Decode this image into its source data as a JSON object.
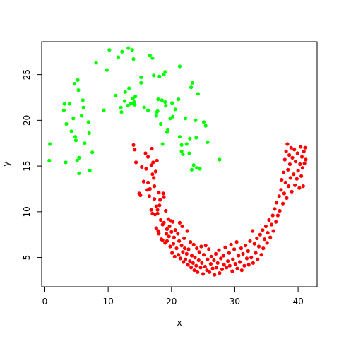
{
  "chart_data": {
    "type": "scatter",
    "xlabel": "x",
    "ylabel": "y",
    "xlim": [
      -0.5,
      43
    ],
    "ylim": [
      1.8,
      28.6
    ],
    "xticks": [
      0,
      10,
      20,
      30,
      40
    ],
    "yticks": [
      5,
      10,
      15,
      20,
      25
    ],
    "grid": false,
    "series": [
      {
        "color": "#00ff00",
        "points": [
          [
            0.8,
            17.4
          ],
          [
            0.7,
            15.6
          ],
          [
            3.0,
            21.1
          ],
          [
            3.1,
            21.8
          ],
          [
            3.4,
            19.6
          ],
          [
            3.3,
            15.4
          ],
          [
            3.9,
            21.8
          ],
          [
            4.2,
            18.8
          ],
          [
            4.5,
            20.2
          ],
          [
            4.7,
            24.0
          ],
          [
            4.8,
            18.2
          ],
          [
            4.9,
            17.8
          ],
          [
            5.2,
            24.4
          ],
          [
            5.3,
            23.3
          ],
          [
            5.1,
            15.6
          ],
          [
            5.4,
            15.9
          ],
          [
            5.4,
            14.2
          ],
          [
            5.8,
            20.5
          ],
          [
            6.0,
            22.2
          ],
          [
            6.1,
            21.4
          ],
          [
            6.3,
            17.5
          ],
          [
            6.9,
            19.8
          ],
          [
            7.0,
            18.6
          ],
          [
            7.1,
            14.5
          ],
          [
            7.5,
            16.5
          ],
          [
            8.1,
            26.3
          ],
          [
            10.2,
            27.7
          ],
          [
            9.8,
            25.5
          ],
          [
            9.3,
            21.1
          ],
          [
            11.2,
            22.7
          ],
          [
            11.6,
            26.9
          ],
          [
            12.2,
            27.5
          ],
          [
            12.0,
            21.4
          ],
          [
            12.1,
            20.9
          ],
          [
            12.7,
            23.1
          ],
          [
            12.6,
            22.1
          ],
          [
            13.1,
            21.6
          ],
          [
            13.2,
            27.9
          ],
          [
            13.3,
            23.5
          ],
          [
            13.5,
            21.8
          ],
          [
            13.8,
            27.7
          ],
          [
            13.9,
            22.4
          ],
          [
            14.0,
            26.7
          ],
          [
            14.1,
            22.0
          ],
          [
            14.2,
            21.7
          ],
          [
            14.3,
            22.6
          ],
          [
            14.0,
            21.9
          ],
          [
            15.2,
            24.7
          ],
          [
            15.2,
            24.1
          ],
          [
            15.7,
            21.4
          ],
          [
            16.3,
            21.1
          ],
          [
            16.6,
            27.1
          ],
          [
            17.0,
            26.8
          ],
          [
            17.2,
            24.9
          ],
          [
            17.6,
            20.5
          ],
          [
            17.7,
            20.9
          ],
          [
            17.8,
            21.0
          ],
          [
            17.9,
            22.3
          ],
          [
            18.1,
            24.8
          ],
          [
            18.3,
            19.6
          ],
          [
            18.5,
            22.2
          ],
          [
            18.6,
            17.4
          ],
          [
            18.8,
            25.0
          ],
          [
            19.0,
            25.3
          ],
          [
            19.0,
            22.0
          ],
          [
            19.1,
            21.6
          ],
          [
            19.3,
            18.7
          ],
          [
            19.4,
            19.0
          ],
          [
            19.8,
            20.2
          ],
          [
            20.1,
            21.9
          ],
          [
            20.2,
            20.4
          ],
          [
            20.6,
            21.2
          ],
          [
            21.1,
            22.3
          ],
          [
            21.3,
            25.9
          ],
          [
            21.3,
            18.2
          ],
          [
            21.6,
            17.3
          ],
          [
            21.6,
            16.6
          ],
          [
            21.8,
            16.3
          ],
          [
            22.2,
            20.2
          ],
          [
            22.4,
            17.4
          ],
          [
            22.8,
            16.4
          ],
          [
            22.9,
            18.0
          ],
          [
            23.1,
            23.6
          ],
          [
            23.3,
            24.1
          ],
          [
            23.2,
            14.6
          ],
          [
            23.5,
            15.1
          ],
          [
            23.8,
            20.0
          ],
          [
            23.9,
            18.1
          ],
          [
            24.0,
            14.8
          ],
          [
            24.2,
            22.9
          ],
          [
            24.5,
            14.7
          ],
          [
            25.1,
            19.8
          ],
          [
            25.4,
            19.4
          ],
          [
            25.7,
            17.6
          ],
          [
            27.6,
            15.7
          ]
        ]
      },
      {
        "color": "#ff0000",
        "points": [
          [
            14.0,
            17.3
          ],
          [
            14.2,
            16.8
          ],
          [
            14.4,
            15.4
          ],
          [
            14.9,
            12.0
          ],
          [
            15.1,
            11.8
          ],
          [
            15.3,
            14.9
          ],
          [
            15.6,
            13.3
          ],
          [
            15.9,
            16.4
          ],
          [
            16.0,
            14.7
          ],
          [
            16.2,
            12.4
          ],
          [
            16.3,
            13.2
          ],
          [
            16.3,
            16.0
          ],
          [
            16.5,
            11.7
          ],
          [
            16.6,
            12.5
          ],
          [
            16.8,
            15.1
          ],
          [
            16.8,
            10.2
          ],
          [
            16.9,
            16.9
          ],
          [
            17.0,
            9.8
          ],
          [
            17.0,
            14.1
          ],
          [
            17.1,
            15.4
          ],
          [
            17.2,
            13.7
          ],
          [
            17.3,
            11.4
          ],
          [
            17.3,
            12.8
          ],
          [
            17.4,
            9.7
          ],
          [
            17.5,
            14.4
          ],
          [
            17.6,
            10.6
          ],
          [
            17.6,
            8.2
          ],
          [
            17.7,
            15.6
          ],
          [
            17.8,
            10.2
          ],
          [
            17.8,
            9.8
          ],
          [
            17.9,
            7.9
          ],
          [
            18.0,
            12.1
          ],
          [
            18.0,
            7.6
          ],
          [
            18.1,
            10.7
          ],
          [
            18.2,
            11.3
          ],
          [
            18.3,
            9.1
          ],
          [
            18.4,
            7.0
          ],
          [
            18.6,
            8.6
          ],
          [
            18.6,
            6.9
          ],
          [
            18.7,
            12.0
          ],
          [
            18.8,
            11.6
          ],
          [
            18.8,
            8.8
          ],
          [
            19.0,
            6.6
          ],
          [
            19.1,
            10.1
          ],
          [
            19.2,
            7.6
          ],
          [
            19.3,
            8.1
          ],
          [
            19.3,
            6.8
          ],
          [
            19.5,
            9.2
          ],
          [
            19.6,
            7.3
          ],
          [
            19.7,
            8.4
          ],
          [
            19.8,
            6.2
          ],
          [
            19.9,
            9.0
          ],
          [
            20.0,
            7.8
          ],
          [
            20.1,
            5.5
          ],
          [
            20.2,
            8.9
          ],
          [
            20.3,
            6.5
          ],
          [
            20.4,
            7.2
          ],
          [
            20.5,
            5.1
          ],
          [
            20.6,
            8.0
          ],
          [
            20.8,
            6.0
          ],
          [
            21.0,
            7.6
          ],
          [
            21.1,
            5.3
          ],
          [
            21.2,
            6.8
          ],
          [
            21.3,
            8.8
          ],
          [
            21.4,
            4.9
          ],
          [
            21.6,
            6.3
          ],
          [
            21.7,
            8.4
          ],
          [
            21.8,
            5.6
          ],
          [
            21.9,
            4.5
          ],
          [
            22.0,
            7.1
          ],
          [
            22.1,
            6.0
          ],
          [
            22.2,
            4.8
          ],
          [
            22.4,
            5.4
          ],
          [
            22.5,
            7.9
          ],
          [
            22.6,
            4.2
          ],
          [
            22.7,
            5.9
          ],
          [
            22.9,
            4.6
          ],
          [
            23.0,
            6.7
          ],
          [
            23.1,
            3.9
          ],
          [
            23.2,
            5.2
          ],
          [
            23.4,
            4.4
          ],
          [
            23.5,
            6.4
          ],
          [
            23.6,
            3.6
          ],
          [
            23.7,
            5.0
          ],
          [
            23.9,
            4.1
          ],
          [
            24.0,
            6.0
          ],
          [
            24.1,
            3.4
          ],
          [
            24.3,
            4.7
          ],
          [
            24.4,
            5.6
          ],
          [
            24.6,
            3.9
          ],
          [
            24.7,
            6.2
          ],
          [
            24.8,
            4.4
          ],
          [
            25.0,
            3.2
          ],
          [
            25.1,
            5.3
          ],
          [
            25.3,
            4.0
          ],
          [
            25.4,
            6.3
          ],
          [
            25.6,
            3.6
          ],
          [
            25.7,
            4.8
          ],
          [
            25.9,
            5.9
          ],
          [
            26.0,
            3.4
          ],
          [
            26.2,
            4.3
          ],
          [
            26.3,
            5.1
          ],
          [
            26.5,
            3.8
          ],
          [
            26.7,
            4.7
          ],
          [
            26.8,
            3.1
          ],
          [
            27.0,
            5.4
          ],
          [
            27.1,
            3.9
          ],
          [
            27.3,
            4.4
          ],
          [
            27.5,
            5.8
          ],
          [
            27.6,
            3.3
          ],
          [
            27.8,
            4.9
          ],
          [
            28.0,
            3.7
          ],
          [
            28.2,
            5.2
          ],
          [
            28.3,
            4.2
          ],
          [
            28.5,
            6.1
          ],
          [
            28.7,
            3.9
          ],
          [
            28.9,
            4.6
          ],
          [
            29.1,
            5.5
          ],
          [
            29.2,
            4.1
          ],
          [
            29.4,
            6.4
          ],
          [
            29.6,
            3.5
          ],
          [
            29.7,
            4.8
          ],
          [
            29.9,
            5.9
          ],
          [
            30.1,
            4.3
          ],
          [
            30.3,
            6.7
          ],
          [
            30.4,
            3.8
          ],
          [
            30.6,
            5.2
          ],
          [
            30.8,
            4.5
          ],
          [
            31.0,
            6.0
          ],
          [
            31.1,
            3.6
          ],
          [
            31.3,
            5.4
          ],
          [
            31.5,
            4.1
          ],
          [
            31.7,
            6.3
          ],
          [
            31.9,
            4.9
          ],
          [
            32.1,
            5.7
          ],
          [
            32.2,
            4.2
          ],
          [
            32.4,
            6.8
          ],
          [
            32.6,
            5.0
          ],
          [
            32.8,
            7.9
          ],
          [
            32.9,
            4.4
          ],
          [
            33.1,
            6.5
          ],
          [
            33.3,
            5.5
          ],
          [
            33.5,
            7.1
          ],
          [
            33.6,
            4.8
          ],
          [
            33.8,
            6.2
          ],
          [
            34.0,
            7.5
          ],
          [
            34.2,
            5.3
          ],
          [
            34.4,
            8.0
          ],
          [
            34.5,
            6.0
          ],
          [
            34.7,
            7.0
          ],
          [
            34.9,
            8.4
          ],
          [
            35.1,
            6.6
          ],
          [
            35.2,
            7.7
          ],
          [
            35.4,
            9.1
          ],
          [
            35.6,
            7.2
          ],
          [
            35.8,
            8.6
          ],
          [
            36.0,
            9.6
          ],
          [
            36.1,
            7.9
          ],
          [
            36.3,
            10.3
          ],
          [
            36.5,
            8.9
          ],
          [
            36.6,
            11.0
          ],
          [
            36.8,
            9.6
          ],
          [
            37.0,
            11.7
          ],
          [
            37.1,
            10.1
          ],
          [
            37.3,
            12.4
          ],
          [
            37.4,
            13.5
          ],
          [
            37.6,
            10.9
          ],
          [
            37.7,
            14.3
          ],
          [
            37.8,
            12.0
          ],
          [
            37.9,
            15.7
          ],
          [
            38.0,
            13.2
          ],
          [
            38.1,
            16.6
          ],
          [
            38.2,
            11.5
          ],
          [
            38.3,
            17.4
          ],
          [
            38.4,
            14.6
          ],
          [
            38.5,
            12.8
          ],
          [
            38.6,
            16.2
          ],
          [
            38.7,
            15.2
          ],
          [
            38.8,
            13.7
          ],
          [
            38.9,
            17.0
          ],
          [
            39.0,
            12.2
          ],
          [
            39.1,
            15.9
          ],
          [
            39.3,
            14.1
          ],
          [
            39.4,
            16.8
          ],
          [
            39.5,
            12.9
          ],
          [
            39.6,
            15.5
          ],
          [
            39.8,
            13.6
          ],
          [
            39.9,
            16.4
          ],
          [
            40.0,
            14.5
          ],
          [
            40.2,
            12.6
          ],
          [
            40.3,
            15.2
          ],
          [
            40.4,
            17.1
          ],
          [
            40.5,
            13.9
          ],
          [
            40.6,
            16.0
          ],
          [
            40.7,
            14.8
          ],
          [
            40.8,
            12.8
          ],
          [
            40.9,
            16.6
          ],
          [
            41.0,
            15.3
          ],
          [
            41.1,
            17.0
          ],
          [
            41.2,
            15.7
          ]
        ]
      }
    ]
  }
}
